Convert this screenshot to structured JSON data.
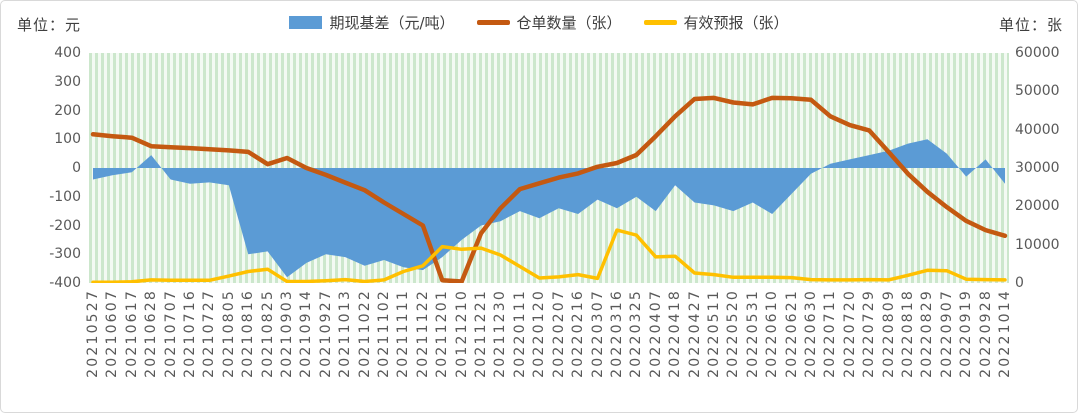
{
  "left_unit_label": "单位：元",
  "right_unit_label": "单位：张",
  "chart_data": {
    "type": "combo",
    "subtype": "area-bar + two lines",
    "grid": "vertical green striped background, no horizontal gridlines",
    "legend_position": "top-center",
    "categories": [
      "20210527",
      "20210607",
      "20210617",
      "20210628",
      "20210707",
      "20210716",
      "20210727",
      "20210805",
      "20210816",
      "20210825",
      "20210903",
      "20210914",
      "20210927",
      "20211013",
      "20211022",
      "20211102",
      "20211111",
      "20211122",
      "20211201",
      "20121210",
      "20211221",
      "20211230",
      "20220111",
      "20220120",
      "20220207",
      "20220216",
      "20220307",
      "20220316",
      "20220325",
      "20220407",
      "20220418",
      "20220427",
      "20220511",
      "20220520",
      "20220531",
      "20220610",
      "20220621",
      "20220630",
      "20220711",
      "20220720",
      "20220729",
      "20220809",
      "20220818",
      "20220829",
      "20220907",
      "20220919",
      "20220928",
      "20221014"
    ],
    "left_axis": {
      "title": "单位：元",
      "min": -400,
      "max": 400,
      "ticks": [
        400,
        300,
        200,
        100,
        0,
        -100,
        -200,
        -300,
        -400
      ]
    },
    "right_axis": {
      "title": "单位：张",
      "min": 0,
      "max": 60000,
      "ticks": [
        60000,
        50000,
        40000,
        30000,
        20000,
        10000,
        0
      ]
    },
    "series": [
      {
        "name": "期现基差（元/吨）",
        "type": "bar-area",
        "axis": "left",
        "color": "#5B9BD5",
        "values": [
          -40,
          -25,
          -15,
          45,
          -40,
          -55,
          -50,
          -60,
          -300,
          -290,
          -380,
          -330,
          -300,
          -310,
          -340,
          -320,
          -345,
          -355,
          -310,
          -250,
          -200,
          -185,
          -150,
          -175,
          -140,
          -160,
          -110,
          -140,
          -100,
          -150,
          -60,
          -120,
          -130,
          -150,
          -120,
          -160,
          -90,
          -20,
          15,
          30,
          45,
          60,
          85,
          100,
          50,
          -30,
          30,
          -55
        ]
      },
      {
        "name": "仓单数量（张）",
        "type": "line",
        "axis": "right",
        "color": "#C45911",
        "values": [
          38800,
          38300,
          37900,
          35700,
          35400,
          35200,
          34900,
          34600,
          34200,
          31000,
          32600,
          30000,
          28200,
          26200,
          24200,
          21000,
          18000,
          15000,
          700,
          400,
          13000,
          19500,
          24500,
          26000,
          27500,
          28600,
          30300,
          31300,
          33400,
          38300,
          43500,
          48000,
          48300,
          47100,
          46600,
          48300,
          48200,
          47800,
          43500,
          41200,
          39800,
          34200,
          28500,
          23800,
          19800,
          16200,
          13800,
          12300
        ]
      },
      {
        "name": "有效预报（张）",
        "type": "line",
        "axis": "right",
        "color": "#FFC000",
        "values": [
          200,
          200,
          300,
          800,
          700,
          700,
          700,
          1800,
          3000,
          3600,
          400,
          400,
          600,
          900,
          400,
          800,
          3000,
          4500,
          9500,
          8800,
          9100,
          7300,
          4300,
          1300,
          1600,
          2200,
          1200,
          13800,
          12500,
          6800,
          7000,
          2600,
          2200,
          1500,
          1500,
          1500,
          1400,
          900,
          800,
          800,
          900,
          800,
          2000,
          3300,
          3200,
          1000,
          900,
          800
        ]
      }
    ]
  }
}
